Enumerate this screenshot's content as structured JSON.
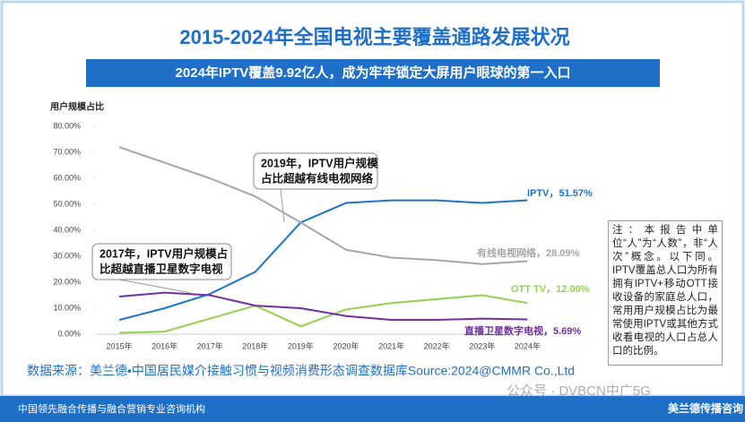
{
  "chart_data": {
    "type": "line",
    "title": "2015-2024年全国电视主要覆盖通路发展状况",
    "subtitle": "2024年IPTV覆盖9.92亿人，成为牢牢锁定大屏用户眼球的第一入口",
    "y_label": "用户规模占比",
    "categories": [
      "2015年",
      "2016年",
      "2017年",
      "2018年",
      "2019年",
      "2020年",
      "2021年",
      "2022年",
      "2023年",
      "2024年"
    ],
    "ylim": [
      0,
      80
    ],
    "yticks": [
      {
        "value": 0,
        "label": "0.00%"
      },
      {
        "value": 10,
        "label": "10.00%"
      },
      {
        "value": 20,
        "label": "20.00%"
      },
      {
        "value": 30,
        "label": "30.00%"
      },
      {
        "value": 40,
        "label": "40.00%"
      },
      {
        "value": 50,
        "label": "50.00%"
      },
      {
        "value": 60,
        "label": "60.00%"
      },
      {
        "value": 70,
        "label": "70.00%"
      },
      {
        "value": 80,
        "label": "80.00%"
      }
    ],
    "series": [
      {
        "label": "IPTV，51.57%",
        "color": "#1f73c6",
        "values": [
          5.5,
          10,
          15.5,
          24,
          43,
          50.5,
          51.5,
          51.5,
          50.5,
          51.57
        ]
      },
      {
        "label": "有线电视网络，28.09%",
        "color": "#a6a6a6",
        "values": [
          72,
          66,
          60,
          53,
          43,
          32.5,
          29.5,
          28.5,
          27,
          28.09
        ]
      },
      {
        "label": "OTT TV，12.00%",
        "color": "#92d050",
        "values": [
          0.5,
          1,
          6,
          11,
          3,
          9.5,
          12,
          13.5,
          15,
          12.0
        ]
      },
      {
        "label": "直播卫星数字电视，5.69%",
        "color": "#7030a0",
        "values": [
          14.5,
          16,
          15,
          11,
          10,
          7,
          5.5,
          5.5,
          6,
          5.69
        ]
      }
    ],
    "annotations": [
      {
        "lines": [
          "2019年，IPTV用户规模",
          "占比超越有线电视网络"
        ]
      },
      {
        "lines": [
          "2017年，IPTV用户规模占",
          "比超越直播卫星数字电视"
        ]
      }
    ],
    "note": "注：本报告中单位“人”为“人数”，非“人次”概念。以下同。IPTV覆盖总人口为所有拥有IPTV+移动OTT接收设备的家庭总人口，常用用户规模占比为最常使用IPTV或其他方式收看电视的人口占总人口的比例。",
    "source": "数据来源：美兰德•中国居民媒介接触习惯与视频消费形态调查数据库Source:2024@CMMR Co.,Ltd",
    "footer": "中国领先融合传播与融合营销专业咨询机构",
    "logo": "美兰德传播咨询",
    "watermark": "公众号 · DVBCN中广5G"
  }
}
